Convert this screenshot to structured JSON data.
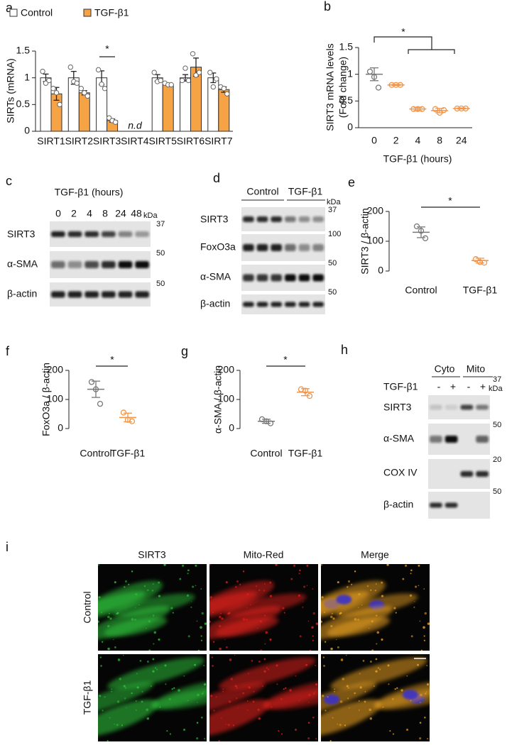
{
  "panel_letters": [
    "a",
    "b",
    "c",
    "d",
    "e",
    "f",
    "g",
    "h",
    "i"
  ],
  "chart_data": [
    {
      "type": "bar",
      "ylabel": "SIRTs (mRNA)",
      "categories": [
        "SIRT1",
        "SIRT2",
        "SIRT3",
        "SIRT4",
        "SIRT5",
        "SIRT6",
        "SIRT7"
      ],
      "series": [
        {
          "name": "Control",
          "color": "#ffffff",
          "values": [
            1,
            1,
            1,
            null,
            1,
            1,
            1
          ],
          "errors": [
            0.07,
            0.12,
            0.13,
            null,
            0.06,
            0.06,
            0.09
          ],
          "points": [
            [
              1.12,
              0.9,
              0.95
            ],
            [
              1.2,
              0.93,
              0.9
            ],
            [
              1.15,
              0.88,
              0.8
            ],
            null,
            [
              1.1,
              0.93,
              0.95
            ],
            [
              0.95,
              1.18,
              0.95
            ],
            [
              1.1,
              0.83,
              0.98
            ]
          ]
        },
        {
          "name": "TGF-β1",
          "color": "#f5a345",
          "values": [
            0.7,
            0.72,
            0.2,
            null,
            0.88,
            1.2,
            0.78
          ],
          "errors": [
            0.12,
            0.04,
            0.03,
            null,
            0.02,
            0.17,
            0.05
          ],
          "points": [
            [
              0.8,
              0.72,
              0.5
            ],
            [
              0.8,
              0.72,
              0.66
            ],
            [
              0.25,
              0.2,
              0.17
            ],
            null,
            [
              0.9,
              0.87,
              0.87
            ],
            [
              1.45,
              1.05,
              1.1
            ],
            [
              0.83,
              0.8,
              0.7
            ]
          ]
        }
      ],
      "ylim": [
        0,
        1.5
      ],
      "yticks": [
        0,
        0.5,
        1,
        1.5
      ],
      "annotations": [
        "*",
        "n.d"
      ]
    },
    {
      "type": "dot",
      "ylabel": [
        "SIRT3 mRNA levels",
        "(Fold change)"
      ],
      "xlabel": "TGF-β1 (hours)",
      "categories": [
        "0",
        "2",
        "4",
        "8",
        "24"
      ],
      "colors": [
        "#777777",
        "#f0954a",
        "#f0954a",
        "#f0954a",
        "#f0954a"
      ],
      "values": [
        1,
        0.8,
        0.35,
        0.32,
        0.36
      ],
      "errors": [
        0.12,
        0.01,
        0.03,
        0.04,
        0.01
      ],
      "points": [
        [
          1.05,
          0.95,
          0.75
        ],
        [
          0.8,
          0.8,
          0.8
        ],
        [
          0.35,
          0.35,
          0.35
        ],
        [
          0.35,
          0.28,
          0.33
        ],
        [
          0.36,
          0.36,
          0.36
        ]
      ],
      "ylim": [
        0,
        1.5
      ],
      "yticks": [
        0,
        0.5,
        1,
        1.5
      ],
      "annotations": [
        "*"
      ]
    },
    {
      "type": "dot",
      "ylabel": "SIRT3 / β-actin",
      "categories": [
        "Control",
        "TGF-β1"
      ],
      "colors": [
        "#777777",
        "#f0954a"
      ],
      "values": [
        130,
        35
      ],
      "errors": [
        18,
        8
      ],
      "points": [
        [
          150,
          135,
          110
        ],
        [
          40,
          30,
          28
        ]
      ],
      "ylim": [
        0,
        200
      ],
      "yticks": [
        0,
        100,
        200
      ],
      "annotations": [
        "*"
      ]
    },
    {
      "type": "dot",
      "ylabel": "FoxO3a / β-actin",
      "categories": [
        "Control",
        "TGF-β1"
      ],
      "colors": [
        "#777777",
        "#f0954a"
      ],
      "values": [
        135,
        38
      ],
      "errors": [
        28,
        15
      ],
      "points": [
        [
          160,
          135,
          85
        ],
        [
          55,
          30,
          25
        ]
      ],
      "ylim": [
        0,
        200
      ],
      "yticks": [
        0,
        100,
        200
      ],
      "annotations": [
        "*"
      ]
    },
    {
      "type": "dot",
      "ylabel": "α-SMA / β-actin",
      "categories": [
        "Control",
        "TGF-β1"
      ],
      "colors": [
        "#777777",
        "#f0954a"
      ],
      "values": [
        25,
        125
      ],
      "errors": [
        7,
        12
      ],
      "points": [
        [
          32,
          25,
          18
        ],
        [
          135,
          130,
          112
        ]
      ],
      "ylim": [
        0,
        200
      ],
      "yticks": [
        0,
        100,
        200
      ],
      "annotations": [
        "*"
      ]
    }
  ],
  "blots": [
    {
      "title": "TGF-β1 (hours)",
      "lanes": [
        "0",
        "2",
        "4",
        "8",
        "24",
        "48"
      ],
      "unit": "kDa",
      "rows": [
        {
          "label": "SIRT3",
          "marker": 37
        },
        {
          "label": "α-SMA",
          "marker": 50
        },
        {
          "label": "β-actin",
          "marker": 50
        }
      ]
    },
    {
      "groups": [
        "Control",
        "TGF-β1"
      ],
      "unit": "kDa",
      "rows": [
        {
          "label": "SIRT3",
          "marker": 37
        },
        {
          "label": "FoxO3a",
          "marker": 100
        },
        {
          "label": "α-SMA",
          "marker": 50
        },
        {
          "label": "β-actin",
          "marker": 50
        }
      ]
    },
    {
      "groups": [
        "Cyto",
        "Mito"
      ],
      "treatment": "TGF-β1",
      "lanes": [
        "-",
        "+",
        "-",
        "+"
      ],
      "unit": "kDa",
      "rows": [
        {
          "label": "SIRT3",
          "marker": 37
        },
        {
          "label": "α-SMA",
          "marker": 50
        },
        {
          "label": "COX IV",
          "marker": 20
        },
        {
          "label": "β-actin",
          "marker": 50
        }
      ]
    }
  ],
  "microscopy": {
    "columns": [
      "SIRT3",
      "Mito-Red",
      "Merge"
    ],
    "rows": [
      "Control",
      "TGF-β1"
    ]
  }
}
